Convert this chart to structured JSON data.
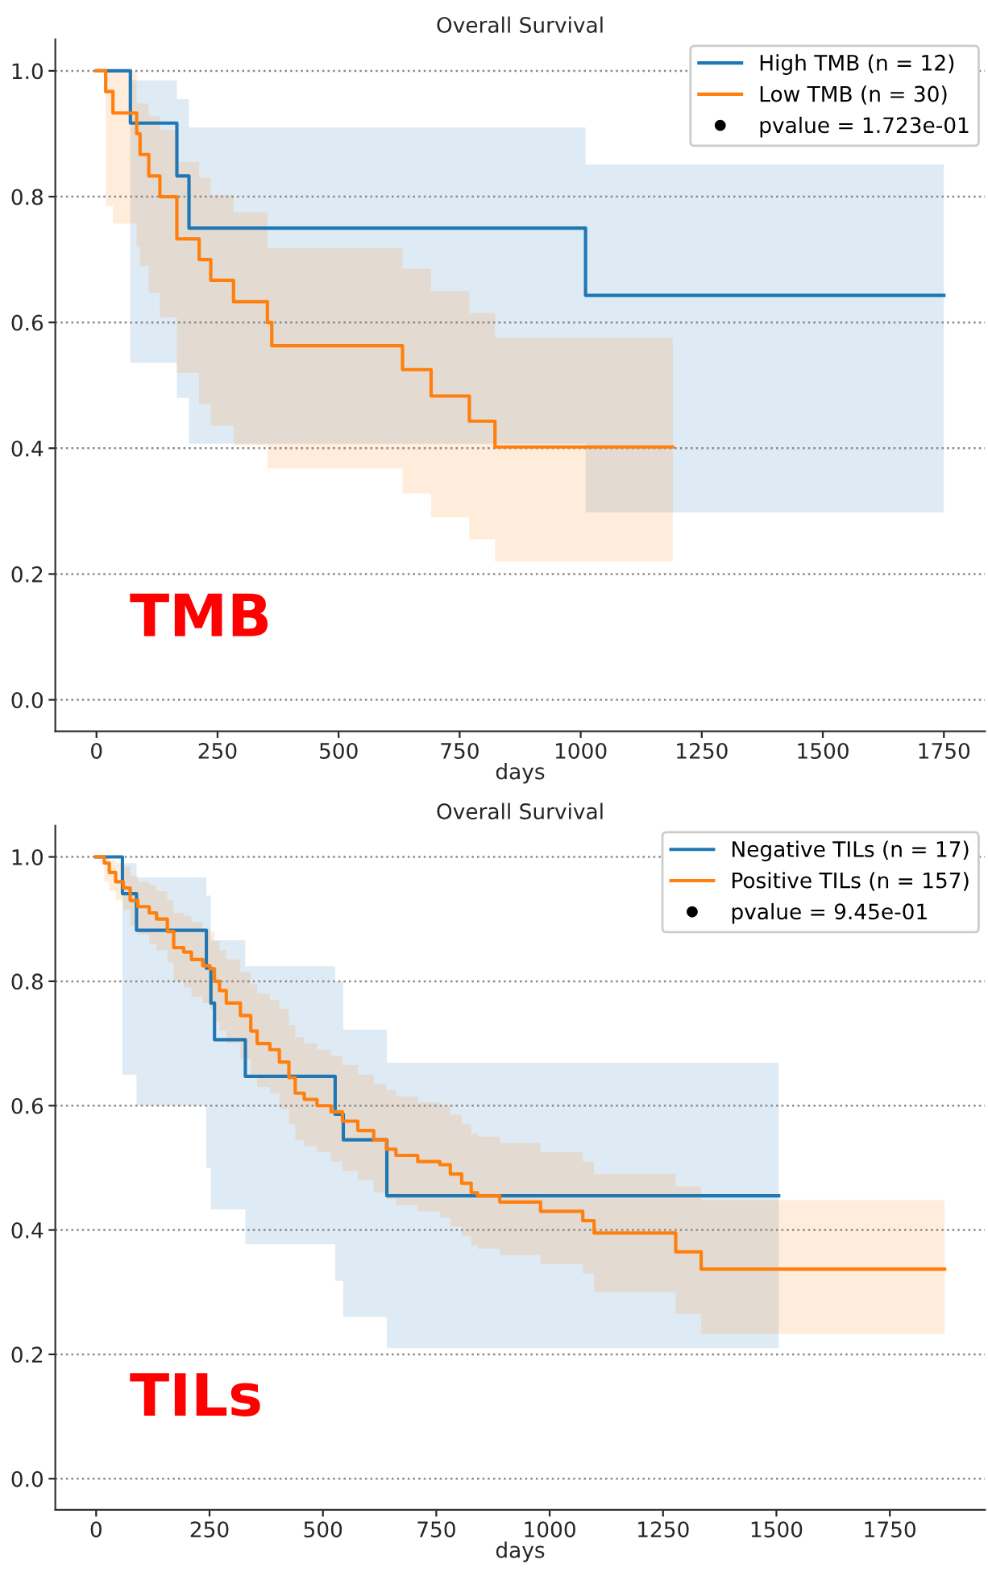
{
  "chart_data": [
    {
      "type": "step",
      "title": "Overall Survival",
      "xlabel": "days",
      "xlim": [
        -85,
        1835
      ],
      "xticks": [
        0,
        250,
        500,
        750,
        1000,
        1250,
        1500,
        1750
      ],
      "ylim": [
        -0.05,
        1.05
      ],
      "yticks": [
        {
          "value": 0,
          "label": "0.0"
        },
        {
          "value": 0.2,
          "label": "0.2"
        },
        {
          "value": 0.4,
          "label": "0.4"
        },
        {
          "value": 0.6,
          "label": "0.6"
        },
        {
          "value": 0.8,
          "label": "0.8"
        },
        {
          "value": 1,
          "label": "1.0"
        }
      ],
      "grid": "y",
      "legend": "top right",
      "annotations": [
        "pvalue = 1.723e-01",
        "TMB"
      ],
      "series": [
        {
          "name": "High TMB (n = 12)",
          "color": "#1f77b4",
          "x": [
            0,
            70,
            166,
            191,
            1010,
            1750
          ],
          "values": [
            1,
            0.917,
            0.833,
            0.75,
            0.643,
            0.643
          ],
          "lower": [
            1,
            0.536,
            0.48,
            0.407,
            0.298,
            0.298
          ],
          "upper": [
            1,
            0.985,
            0.955,
            0.91,
            0.851,
            0.851
          ]
        },
        {
          "name": "Low TMB (n = 30)",
          "color": "#ff7f0e",
          "x": [
            0,
            19,
            34,
            83,
            90,
            108,
            131,
            166,
            212,
            236,
            283,
            353,
            362,
            632,
            691,
            770,
            823,
            1190
          ],
          "values": [
            1,
            0.967,
            0.933,
            0.9,
            0.867,
            0.833,
            0.8,
            0.733,
            0.7,
            0.667,
            0.633,
            0.6,
            0.563,
            0.525,
            0.483,
            0.443,
            0.402,
            0.402
          ],
          "lower": [
            1,
            0.785,
            0.757,
            0.72,
            0.69,
            0.647,
            0.608,
            0.52,
            0.47,
            0.436,
            0.405,
            0.368,
            0.368,
            0.328,
            0.29,
            0.255,
            0.22,
            0.22
          ],
          "upper": [
            1,
            1,
            1,
            0.948,
            0.948,
            0.928,
            0.906,
            0.855,
            0.83,
            0.803,
            0.775,
            0.718,
            0.718,
            0.685,
            0.65,
            0.615,
            0.576,
            0.576
          ]
        }
      ]
    },
    {
      "type": "step",
      "title": "Overall Survival",
      "xlabel": "days",
      "xlim": [
        -90,
        1960
      ],
      "xticks": [
        0,
        250,
        500,
        750,
        1000,
        1250,
        1500,
        1750
      ],
      "ylim": [
        -0.05,
        1.05
      ],
      "yticks": [
        {
          "value": 0,
          "label": "0.0"
        },
        {
          "value": 0.2,
          "label": "0.2"
        },
        {
          "value": 0.4,
          "label": "0.4"
        },
        {
          "value": 0.6,
          "label": "0.6"
        },
        {
          "value": 0.8,
          "label": "0.8"
        },
        {
          "value": 1,
          "label": "1.0"
        }
      ],
      "grid": "y",
      "legend": "top right",
      "annotations": [
        "pvalue = 9.45e-01",
        "TILs"
      ],
      "series": [
        {
          "name": "Negative TILs (n = 17)",
          "color": "#1f77b4",
          "x": [
            0,
            58,
            89,
            243,
            253,
            261,
            329,
            527,
            545,
            641,
            1505
          ],
          "values": [
            1,
            0.941,
            0.882,
            0.821,
            0.765,
            0.706,
            0.647,
            0.586,
            0.545,
            0.455,
            0.455
          ],
          "lower": [
            1,
            0.65,
            0.6,
            0.5,
            0.433,
            0.433,
            0.377,
            0.318,
            0.26,
            0.21,
            0.21
          ],
          "upper": [
            1,
            0.99,
            0.967,
            0.938,
            0.866,
            0.866,
            0.824,
            0.8,
            0.722,
            0.669,
            0.669
          ]
        },
        {
          "name": "Positive TILs (n = 157)",
          "color": "#ff7f0e",
          "x": [
            0,
            18,
            29,
            43,
            60,
            75,
            92,
            117,
            133,
            157,
            171,
            193,
            210,
            235,
            251,
            261,
            272,
            287,
            318,
            341,
            355,
            383,
            404,
            425,
            439,
            459,
            487,
            518,
            543,
            577,
            612,
            640,
            661,
            709,
            758,
            781,
            806,
            827,
            841,
            890,
            980,
            1073,
            1098,
            1278,
            1334,
            1871
          ],
          "values": [
            1,
            0.99,
            0.975,
            0.96,
            0.95,
            0.93,
            0.92,
            0.91,
            0.9,
            0.88,
            0.854,
            0.847,
            0.835,
            0.825,
            0.82,
            0.8,
            0.785,
            0.765,
            0.745,
            0.72,
            0.7,
            0.69,
            0.67,
            0.645,
            0.62,
            0.61,
            0.6,
            0.59,
            0.575,
            0.56,
            0.545,
            0.53,
            0.52,
            0.51,
            0.505,
            0.49,
            0.475,
            0.46,
            0.455,
            0.445,
            0.43,
            0.415,
            0.395,
            0.365,
            0.337,
            0.337
          ],
          "lower": [
            1,
            0.96,
            0.945,
            0.93,
            0.915,
            0.89,
            0.875,
            0.86,
            0.85,
            0.83,
            0.8,
            0.79,
            0.775,
            0.765,
            0.755,
            0.735,
            0.72,
            0.7,
            0.675,
            0.65,
            0.63,
            0.62,
            0.595,
            0.57,
            0.545,
            0.535,
            0.525,
            0.51,
            0.495,
            0.48,
            0.46,
            0.45,
            0.44,
            0.43,
            0.42,
            0.405,
            0.39,
            0.375,
            0.37,
            0.36,
            0.345,
            0.33,
            0.3,
            0.265,
            0.233,
            0.233
          ],
          "upper": [
            1,
            1,
            0.995,
            0.99,
            0.985,
            0.97,
            0.96,
            0.955,
            0.945,
            0.93,
            0.91,
            0.905,
            0.895,
            0.885,
            0.88,
            0.865,
            0.85,
            0.835,
            0.815,
            0.795,
            0.78,
            0.77,
            0.755,
            0.73,
            0.71,
            0.7,
            0.69,
            0.68,
            0.665,
            0.65,
            0.635,
            0.625,
            0.615,
            0.605,
            0.6,
            0.585,
            0.57,
            0.555,
            0.55,
            0.54,
            0.525,
            0.51,
            0.49,
            0.47,
            0.448,
            0.448
          ]
        }
      ]
    }
  ]
}
